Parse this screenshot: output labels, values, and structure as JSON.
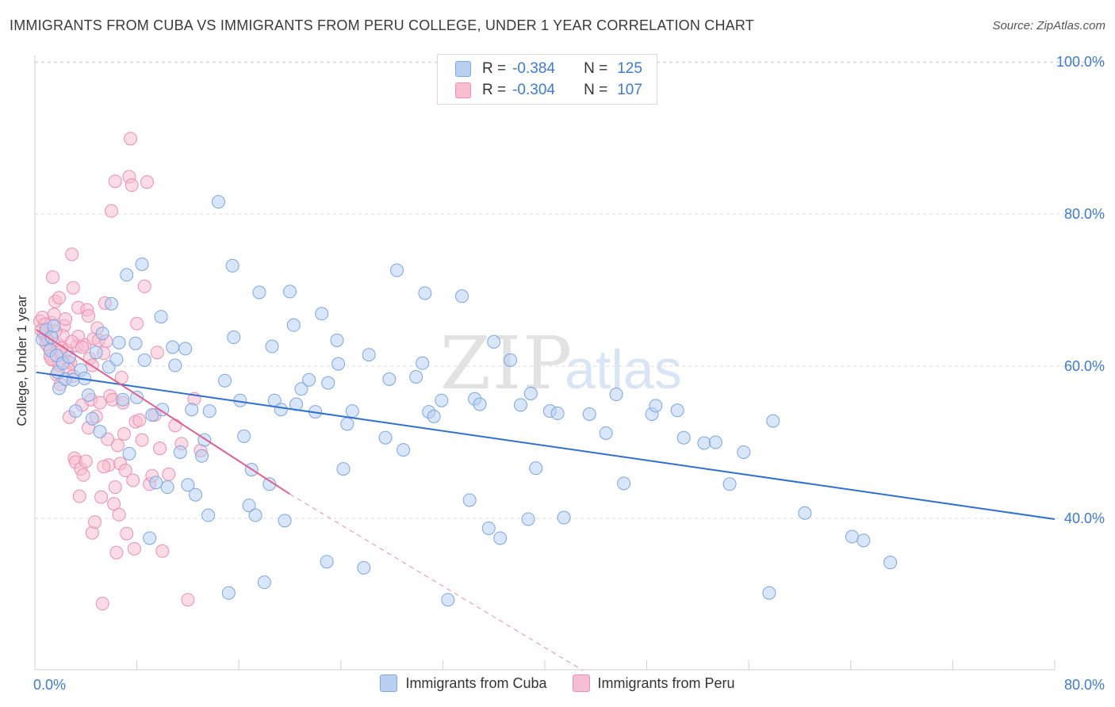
{
  "title": "IMMIGRANTS FROM CUBA VS IMMIGRANTS FROM PERU COLLEGE, UNDER 1 YEAR CORRELATION CHART",
  "source": "Source: ZipAtlas.com",
  "watermark": {
    "zip": "ZIP",
    "atlas": "atlas"
  },
  "legend": {
    "r_label": "R =",
    "n_label": "N =",
    "cuba": {
      "r": "-0.384",
      "n": "125"
    },
    "peru": {
      "r": "-0.304",
      "n": "107"
    }
  },
  "colors": {
    "cuba_fill": "#b9d0f2",
    "cuba_stroke": "#7aa6e3",
    "cuba_line": "#2f6fd0",
    "peru_fill": "#f7bdd0",
    "peru_stroke": "#ec8fb0",
    "peru_line": "#e0608e",
    "tick_text": "#3d7bd1",
    "grid": "#dcdcdc"
  },
  "chart_data": {
    "type": "scatter",
    "title": "IMMIGRANTS FROM CUBA VS IMMIGRANTS FROM PERU COLLEGE, UNDER 1 YEAR CORRELATION CHART",
    "xlabel": "",
    "ylabel": "College, Under 1 year",
    "xlim": [
      0,
      80
    ],
    "ylim": [
      20,
      105
    ],
    "x_tick_labels": [
      "0.0%",
      "80.0%"
    ],
    "y_ticks": [
      40,
      60,
      80,
      100
    ],
    "y_tick_labels": [
      "40.0%",
      "60.0%",
      "80.0%",
      "100.0%"
    ],
    "grid": true,
    "legend_position": "top-center",
    "series": [
      {
        "name": "Immigrants from Cuba",
        "trend": {
          "x0": 0.1,
          "y0": 59.2,
          "x1": 80.0,
          "y1": 39.9
        },
        "points": [
          [
            0.6,
            63.5
          ],
          [
            0.9,
            64.8
          ],
          [
            1.2,
            62.1
          ],
          [
            1.3,
            63.8
          ],
          [
            1.5,
            65.3
          ],
          [
            1.7,
            61.4
          ],
          [
            1.8,
            59.2
          ],
          [
            1.9,
            57.1
          ],
          [
            2.2,
            60.4
          ],
          [
            2.4,
            58.3
          ],
          [
            2.7,
            61.2
          ],
          [
            3.0,
            58.2
          ],
          [
            3.2,
            54.1
          ],
          [
            3.6,
            59.5
          ],
          [
            3.9,
            58.4
          ],
          [
            4.2,
            56.2
          ],
          [
            4.5,
            53.1
          ],
          [
            4.8,
            61.8
          ],
          [
            5.1,
            51.4
          ],
          [
            5.3,
            64.3
          ],
          [
            5.8,
            59.9
          ],
          [
            6.0,
            68.2
          ],
          [
            6.4,
            60.9
          ],
          [
            6.6,
            63.1
          ],
          [
            6.9,
            55.6
          ],
          [
            7.2,
            72.0
          ],
          [
            7.4,
            48.5
          ],
          [
            7.9,
            63.0
          ],
          [
            8.0,
            55.9
          ],
          [
            8.4,
            73.4
          ],
          [
            8.6,
            60.8
          ],
          [
            9.0,
            37.4
          ],
          [
            9.2,
            53.6
          ],
          [
            9.5,
            44.7
          ],
          [
            9.9,
            66.5
          ],
          [
            10.0,
            54.3
          ],
          [
            10.4,
            44.1
          ],
          [
            10.8,
            62.5
          ],
          [
            11.0,
            60.1
          ],
          [
            11.4,
            48.7
          ],
          [
            11.8,
            62.3
          ],
          [
            12.0,
            44.4
          ],
          [
            12.3,
            54.3
          ],
          [
            12.6,
            43.1
          ],
          [
            13.1,
            48.2
          ],
          [
            13.3,
            50.3
          ],
          [
            13.6,
            40.4
          ],
          [
            13.7,
            54.1
          ],
          [
            14.4,
            81.6
          ],
          [
            14.9,
            58.1
          ],
          [
            15.2,
            30.2
          ],
          [
            15.5,
            73.2
          ],
          [
            15.6,
            63.8
          ],
          [
            16.1,
            55.5
          ],
          [
            16.4,
            50.8
          ],
          [
            16.8,
            41.7
          ],
          [
            17.0,
            46.4
          ],
          [
            17.3,
            40.4
          ],
          [
            17.6,
            69.7
          ],
          [
            18.0,
            31.6
          ],
          [
            18.4,
            44.5
          ],
          [
            18.6,
            62.6
          ],
          [
            18.8,
            55.5
          ],
          [
            19.3,
            54.3
          ],
          [
            19.6,
            39.7
          ],
          [
            20.0,
            69.8
          ],
          [
            20.3,
            65.4
          ],
          [
            20.5,
            55.0
          ],
          [
            20.9,
            57.0
          ],
          [
            21.5,
            58.2
          ],
          [
            22.0,
            54.0
          ],
          [
            22.5,
            66.9
          ],
          [
            22.9,
            34.3
          ],
          [
            23.0,
            57.8
          ],
          [
            23.7,
            63.4
          ],
          [
            23.8,
            60.3
          ],
          [
            24.2,
            46.5
          ],
          [
            24.5,
            52.4
          ],
          [
            24.9,
            54.1
          ],
          [
            25.8,
            33.5
          ],
          [
            26.2,
            61.5
          ],
          [
            27.5,
            50.6
          ],
          [
            27.8,
            58.3
          ],
          [
            28.4,
            72.6
          ],
          [
            28.9,
            49.0
          ],
          [
            29.9,
            58.6
          ],
          [
            30.4,
            60.4
          ],
          [
            30.6,
            69.6
          ],
          [
            30.9,
            54.0
          ],
          [
            31.3,
            53.4
          ],
          [
            31.9,
            55.5
          ],
          [
            32.4,
            29.3
          ],
          [
            33.5,
            69.2
          ],
          [
            34.1,
            42.4
          ],
          [
            34.5,
            55.7
          ],
          [
            34.9,
            55.0
          ],
          [
            35.6,
            38.7
          ],
          [
            36.0,
            63.2
          ],
          [
            36.5,
            37.4
          ],
          [
            37.3,
            60.8
          ],
          [
            38.1,
            54.9
          ],
          [
            38.7,
            39.9
          ],
          [
            38.9,
            56.4
          ],
          [
            39.3,
            46.6
          ],
          [
            40.4,
            54.1
          ],
          [
            41.0,
            53.8
          ],
          [
            41.5,
            40.1
          ],
          [
            43.5,
            53.7
          ],
          [
            44.8,
            51.2
          ],
          [
            45.6,
            56.3
          ],
          [
            46.2,
            44.6
          ],
          [
            48.4,
            53.7
          ],
          [
            48.7,
            54.8
          ],
          [
            50.4,
            54.2
          ],
          [
            50.9,
            50.6
          ],
          [
            52.5,
            49.9
          ],
          [
            53.4,
            50.0
          ],
          [
            54.5,
            44.5
          ],
          [
            55.6,
            48.7
          ],
          [
            57.6,
            30.2
          ],
          [
            57.9,
            52.8
          ],
          [
            60.4,
            40.7
          ],
          [
            64.1,
            37.6
          ],
          [
            65.0,
            37.1
          ],
          [
            67.1,
            34.2
          ]
        ]
      },
      {
        "name": "Immigrants from Peru",
        "trend": {
          "x0": 0.1,
          "y0": 64.8,
          "x1": 20.0,
          "y1": 43.2
        },
        "trend_dashed": {
          "x0": 20.0,
          "y0": 43.2,
          "x1": 43.0,
          "y1": 20.0
        },
        "points": [
          [
            0.4,
            65.9
          ],
          [
            0.6,
            66.4
          ],
          [
            0.7,
            64.2
          ],
          [
            0.9,
            63.8
          ],
          [
            1.1,
            62.5
          ],
          [
            1.2,
            61.3
          ],
          [
            1.3,
            65.7
          ],
          [
            1.4,
            71.7
          ],
          [
            1.5,
            60.8
          ],
          [
            1.6,
            68.5
          ],
          [
            1.7,
            58.9
          ],
          [
            1.8,
            62.9
          ],
          [
            1.9,
            69.0
          ],
          [
            2.0,
            57.6
          ],
          [
            2.1,
            62.4
          ],
          [
            2.3,
            65.3
          ],
          [
            2.4,
            66.2
          ],
          [
            2.5,
            62.1
          ],
          [
            2.6,
            60.6
          ],
          [
            2.7,
            53.3
          ],
          [
            2.8,
            60.4
          ],
          [
            2.9,
            74.7
          ],
          [
            3.0,
            70.3
          ],
          [
            3.1,
            47.9
          ],
          [
            3.2,
            47.4
          ],
          [
            3.3,
            62.7
          ],
          [
            3.4,
            67.7
          ],
          [
            3.5,
            42.9
          ],
          [
            3.6,
            46.5
          ],
          [
            3.7,
            54.9
          ],
          [
            3.8,
            45.7
          ],
          [
            3.9,
            62.8
          ],
          [
            4.0,
            47.5
          ],
          [
            4.1,
            67.4
          ],
          [
            4.2,
            66.6
          ],
          [
            4.3,
            61.0
          ],
          [
            4.4,
            55.6
          ],
          [
            4.5,
            38.1
          ],
          [
            4.6,
            63.6
          ],
          [
            4.7,
            39.5
          ],
          [
            4.8,
            53.4
          ],
          [
            4.9,
            65.0
          ],
          [
            5.0,
            63.4
          ],
          [
            5.1,
            55.2
          ],
          [
            5.2,
            42.8
          ],
          [
            5.3,
            28.8
          ],
          [
            5.4,
            61.7
          ],
          [
            5.5,
            68.3
          ],
          [
            5.6,
            63.3
          ],
          [
            5.7,
            50.4
          ],
          [
            5.8,
            47.0
          ],
          [
            5.9,
            56.1
          ],
          [
            6.0,
            80.4
          ],
          [
            6.1,
            55.6
          ],
          [
            6.2,
            41.9
          ],
          [
            6.3,
            84.3
          ],
          [
            6.4,
            35.5
          ],
          [
            6.5,
            49.6
          ],
          [
            6.6,
            40.5
          ],
          [
            6.7,
            47.2
          ],
          [
            6.8,
            58.5
          ],
          [
            6.9,
            55.2
          ],
          [
            7.0,
            51.1
          ],
          [
            7.2,
            38.0
          ],
          [
            7.4,
            84.9
          ],
          [
            7.5,
            89.9
          ],
          [
            7.6,
            83.8
          ],
          [
            7.7,
            45.0
          ],
          [
            7.8,
            36.0
          ],
          [
            7.9,
            52.7
          ],
          [
            8.0,
            65.6
          ],
          [
            8.2,
            52.9
          ],
          [
            8.4,
            50.3
          ],
          [
            8.6,
            70.5
          ],
          [
            8.8,
            84.2
          ],
          [
            9.0,
            44.5
          ],
          [
            9.2,
            45.6
          ],
          [
            9.4,
            53.6
          ],
          [
            9.6,
            61.8
          ],
          [
            9.8,
            49.2
          ],
          [
            10.0,
            35.7
          ],
          [
            10.5,
            45.8
          ],
          [
            11.0,
            52.2
          ],
          [
            11.5,
            49.8
          ],
          [
            12.0,
            29.3
          ],
          [
            12.5,
            55.7
          ],
          [
            13.0,
            48.9
          ],
          [
            1.5,
            66.8
          ],
          [
            2.2,
            64.0
          ],
          [
            3.4,
            63.9
          ],
          [
            1.0,
            63.5
          ],
          [
            1.6,
            64.6
          ],
          [
            2.0,
            61.9
          ],
          [
            0.8,
            65.5
          ],
          [
            1.9,
            60.2
          ],
          [
            2.6,
            59.7
          ],
          [
            3.0,
            58.7
          ],
          [
            4.2,
            51.9
          ],
          [
            5.4,
            46.8
          ],
          [
            6.3,
            44.1
          ],
          [
            7.1,
            46.3
          ],
          [
            0.5,
            64.7
          ],
          [
            0.9,
            62.9
          ],
          [
            1.3,
            60.9
          ],
          [
            2.9,
            63.2
          ],
          [
            3.7,
            62.5
          ],
          [
            4.5,
            60.1
          ]
        ]
      }
    ]
  },
  "bottom_legend": {
    "cuba": "Immigrants from Cuba",
    "peru": "Immigrants from Peru"
  }
}
